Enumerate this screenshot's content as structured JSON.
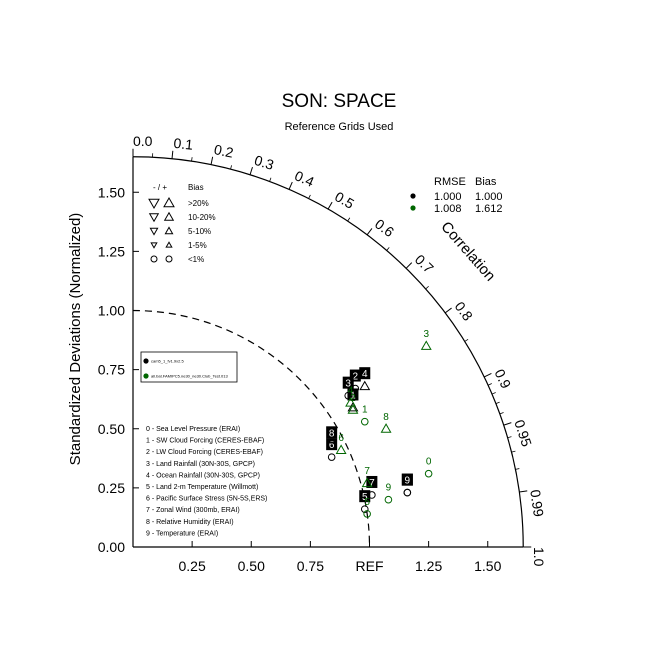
{
  "chart_data": {
    "type": "taylor",
    "title": "SON: SPACE",
    "subtitle": "Reference Grids Used",
    "ylabel": "Standardized Deviations (Normalized)",
    "correlation_label": "Correlation",
    "std_range": [
      0,
      1.65
    ],
    "std_ticks": [
      {
        "v": 0,
        "label": "0.00"
      },
      {
        "v": 0.25,
        "label": "0.25"
      },
      {
        "v": 0.5,
        "label": "0.50"
      },
      {
        "v": 0.75,
        "label": "0.75"
      },
      {
        "v": 1.0,
        "label": "1.00"
      },
      {
        "v": 1.25,
        "label": "1.25"
      },
      {
        "v": 1.5,
        "label": "1.50"
      }
    ],
    "x_ticks": [
      {
        "v": 0.25,
        "label": "0.25"
      },
      {
        "v": 0.5,
        "label": "0.50"
      },
      {
        "v": 0.75,
        "label": "0.75"
      },
      {
        "v": 1.0,
        "label": "REF"
      },
      {
        "v": 1.25,
        "label": "1.25"
      },
      {
        "v": 1.5,
        "label": "1.50"
      }
    ],
    "corr_major": [
      {
        "r": 0.0,
        "label": "0.0"
      },
      {
        "r": 0.1,
        "label": "0.1"
      },
      {
        "r": 0.2,
        "label": "0.2"
      },
      {
        "r": 0.3,
        "label": "0.3"
      },
      {
        "r": 0.4,
        "label": "0.4"
      },
      {
        "r": 0.5,
        "label": "0.5"
      },
      {
        "r": 0.6,
        "label": "0.6"
      },
      {
        "r": 0.7,
        "label": "0.7"
      },
      {
        "r": 0.8,
        "label": "0.8"
      },
      {
        "r": 0.9,
        "label": "0.9"
      },
      {
        "r": 0.95,
        "label": "0.95"
      },
      {
        "r": 0.99,
        "label": "0.99"
      },
      {
        "r": 1.0,
        "label": "1.0"
      }
    ],
    "corr_minor": [
      0.05,
      0.15,
      0.25,
      0.35,
      0.45,
      0.55,
      0.65,
      0.75,
      0.85,
      0.91,
      0.92,
      0.93,
      0.94,
      0.96,
      0.97,
      0.98
    ],
    "ref_arc_std": 1.0,
    "bias_legend": {
      "header_sign": "- / +",
      "header": "Bias",
      "rows": [
        ">20%",
        "10-20%",
        "5-10%",
        "1-5%",
        "<1%"
      ]
    },
    "rmse_table": {
      "headers": [
        "RMSE",
        "Bias"
      ],
      "rows": [
        {
          "color": "#000000",
          "rmse": "1.000",
          "bias": "1.000"
        },
        {
          "color": "#006600",
          "rmse": "1.008",
          "bias": "1.612"
        }
      ]
    },
    "case_legend": [
      {
        "color": "#000000",
        "name": "cam5_1_fv1.9x2.5"
      },
      {
        "color": "#006600",
        "name": "all.bat.FAMIPC5.ne30_ne30.Club_Test.013"
      }
    ],
    "variables": [
      "0 - Sea Level Pressure (ERAI)",
      "1 - SW Cloud Forcing (CERES-EBAF)",
      "2 - LW Cloud Forcing (CERES-EBAF)",
      "3 - Land Rainfall (30N-30S, GPCP)",
      "4 - Ocean Rainfall (30N-30S, GPCP)",
      "5 - Land 2-m Temperature (Willmott)",
      "6 - Pacific Surface Stress (5N-5S,ERS)",
      "7 - Zonal Wind (300mb, ERAI)",
      "8 - Relative Humidity (ERAI)",
      "9 - Temperature (ERAI)"
    ],
    "series": [
      {
        "name": "cam5_1_fv1.9x2.5",
        "color": "#000000",
        "points": [
          {
            "id": "0",
            "x": 1.16,
            "y": 0.23,
            "marker": "circle"
          },
          {
            "id": "1",
            "x": 0.93,
            "y": 0.59,
            "marker": "up"
          },
          {
            "id": "2",
            "x": 0.94,
            "y": 0.67,
            "marker": "circle"
          },
          {
            "id": "3",
            "x": 0.91,
            "y": 0.64,
            "marker": "circle"
          },
          {
            "id": "4",
            "x": 0.98,
            "y": 0.68,
            "marker": "up"
          },
          {
            "id": "5",
            "x": 0.98,
            "y": 0.16,
            "marker": "circle"
          },
          {
            "id": "6",
            "x": 0.84,
            "y": 0.38,
            "marker": "circle"
          },
          {
            "id": "7",
            "x": 1.01,
            "y": 0.22,
            "marker": "circle"
          },
          {
            "id": "8",
            "x": 0.84,
            "y": 0.43,
            "marker": "circle"
          },
          {
            "id": "9",
            "x": 1.16,
            "y": 0.23,
            "marker": "circle"
          }
        ]
      },
      {
        "name": "all.bat.FAMIPC5.ne30_ne30.Club_Test.013",
        "color": "#006600",
        "points": [
          {
            "id": "0",
            "x": 1.25,
            "y": 0.31,
            "marker": "circle"
          },
          {
            "id": "1",
            "x": 0.98,
            "y": 0.53,
            "marker": "circle"
          },
          {
            "id": "2",
            "x": 0.93,
            "y": 0.58,
            "marker": "up"
          },
          {
            "id": "3",
            "x": 1.24,
            "y": 0.85,
            "marker": "up"
          },
          {
            "id": "4",
            "x": 0.92,
            "y": 0.61,
            "marker": "up"
          },
          {
            "id": "5",
            "x": 0.99,
            "y": 0.14,
            "marker": "circle"
          },
          {
            "id": "6",
            "x": 0.88,
            "y": 0.41,
            "marker": "up"
          },
          {
            "id": "7",
            "x": 0.99,
            "y": 0.27,
            "marker": "up"
          },
          {
            "id": "8",
            "x": 1.07,
            "y": 0.5,
            "marker": "up"
          },
          {
            "id": "9",
            "x": 1.08,
            "y": 0.2,
            "marker": "circle"
          }
        ]
      }
    ]
  }
}
